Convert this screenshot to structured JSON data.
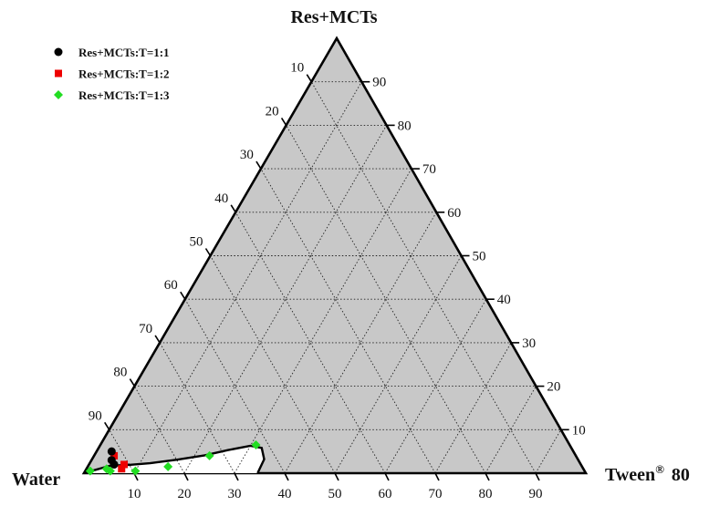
{
  "chart_data": {
    "type": "ternary",
    "vertices": {
      "top": "Res+MCTs",
      "left": "Water",
      "right": "Tween",
      "right_superscript": "®",
      "right_suffix": "80"
    },
    "ticks": [
      10,
      20,
      30,
      40,
      50,
      60,
      70,
      80,
      90
    ],
    "grid": true,
    "legend": [
      {
        "name": "Res+MCTs:T=1:1",
        "color": "#000000",
        "marker": "circle"
      },
      {
        "name": "Res+MCTs:T=1:2",
        "color": "#ee0000",
        "marker": "square"
      },
      {
        "name": "Res+MCTs:T=1:3",
        "color": "#22dd22",
        "marker": "diamond"
      }
    ],
    "series": [
      {
        "name": "Res+MCTs:T=1:1",
        "points": [
          {
            "tween": 3,
            "res": 5
          },
          {
            "tween": 5,
            "res": 2
          },
          {
            "tween": 4,
            "res": 3
          }
        ]
      },
      {
        "name": "Res+MCTs:T=1:2",
        "points": [
          {
            "tween": 4,
            "res": 4
          },
          {
            "tween": 7,
            "res": 2
          },
          {
            "tween": 7,
            "res": 1
          }
        ]
      },
      {
        "name": "Res+MCTs:T=1:3",
        "points": [
          {
            "tween": 1,
            "res": 0.5
          },
          {
            "tween": 4,
            "res": 1
          },
          {
            "tween": 5,
            "res": 0.5
          },
          {
            "tween": 10,
            "res": 0.5
          },
          {
            "tween": 16,
            "res": 1.5
          },
          {
            "tween": 23,
            "res": 4
          },
          {
            "tween": 31,
            "res": 6.5
          }
        ]
      }
    ],
    "region_boundary": [
      {
        "tween": 0,
        "res": 0
      },
      {
        "tween": 2,
        "res": 0.8
      },
      {
        "tween": 4.3,
        "res": 1.7
      },
      {
        "tween": 8,
        "res": 1.9
      },
      {
        "tween": 12,
        "res": 2.3
      },
      {
        "tween": 17,
        "res": 3.1
      },
      {
        "tween": 22,
        "res": 4.1
      },
      {
        "tween": 26,
        "res": 5.3
      },
      {
        "tween": 30,
        "res": 6.3
      },
      {
        "tween": 32.5,
        "res": 5.8
      },
      {
        "tween": 34.3,
        "res": 3.2
      },
      {
        "tween": 34.6,
        "res": 0
      }
    ]
  }
}
